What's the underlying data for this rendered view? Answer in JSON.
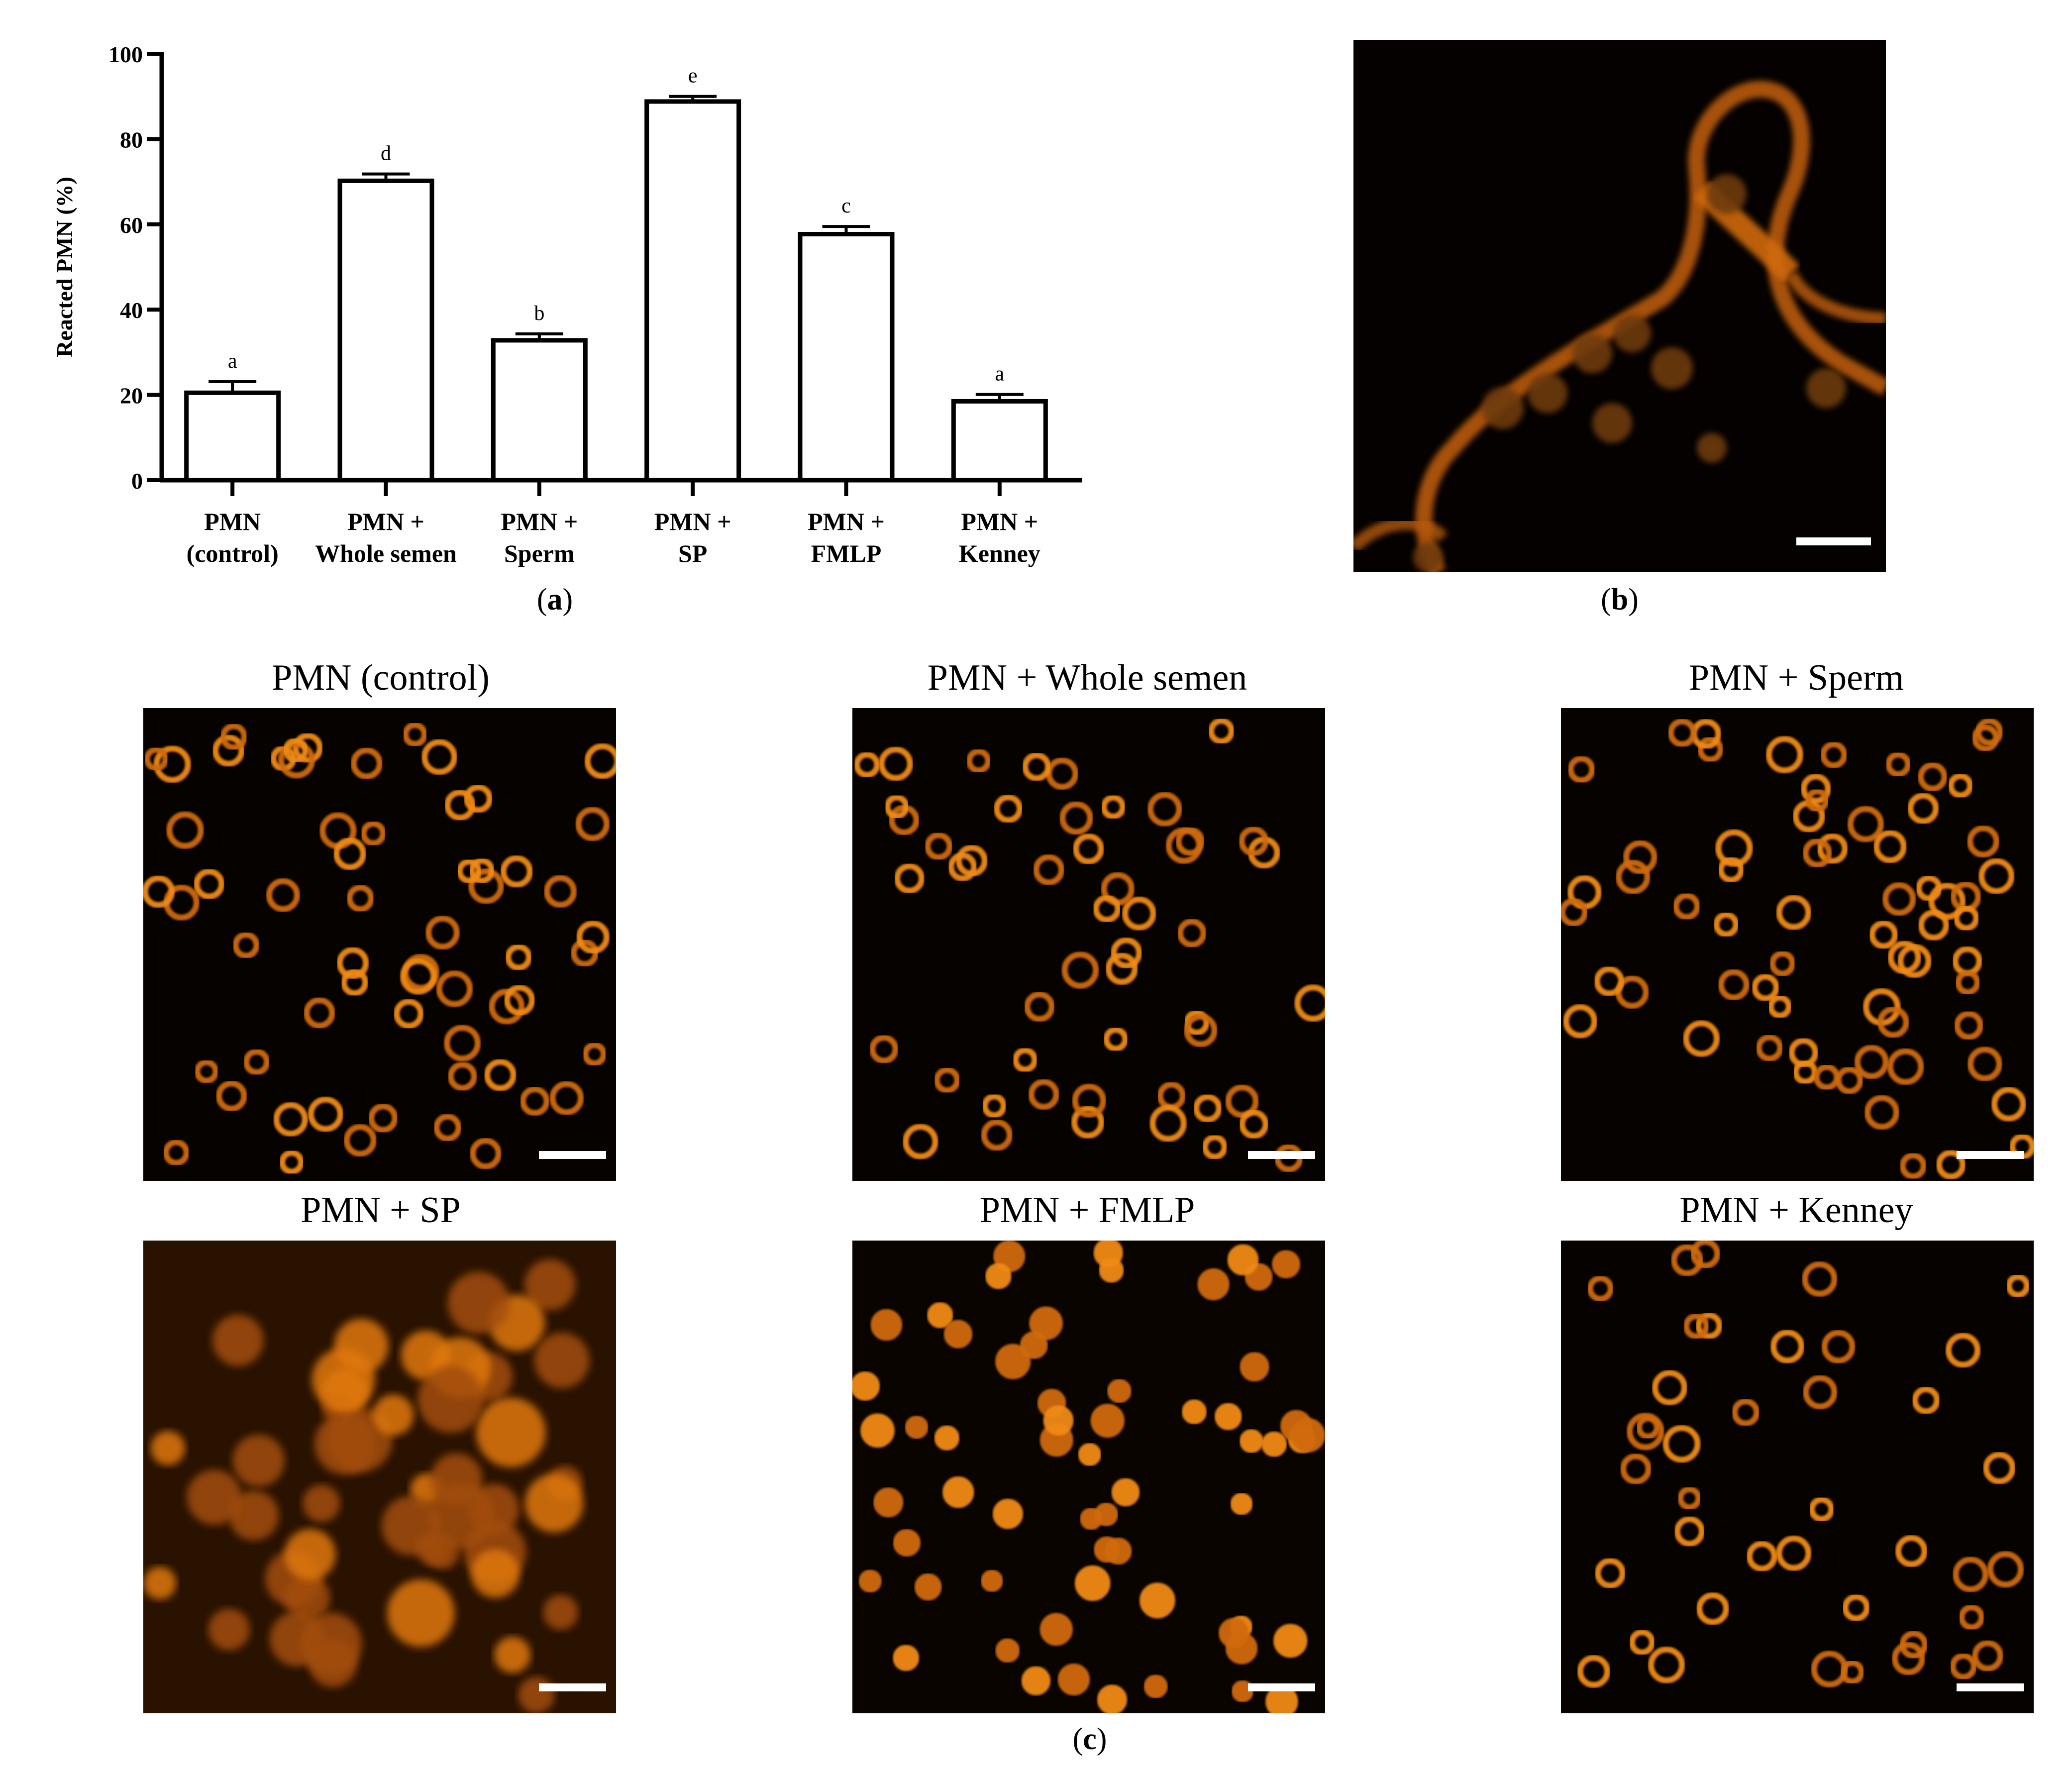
{
  "chart_data": {
    "type": "bar",
    "ylabel": "Reacted PMN (%)",
    "ylim": [
      0,
      100
    ],
    "yticks": [
      0,
      20,
      40,
      60,
      80,
      100
    ],
    "categories": [
      [
        "PMN",
        "(control)"
      ],
      [
        "PMN +",
        "Whole semen"
      ],
      [
        "PMN +",
        "Sperm"
      ],
      [
        "PMN +",
        "SP"
      ],
      [
        "PMN +",
        "FMLP"
      ],
      [
        "PMN +",
        "Kenney"
      ]
    ],
    "values": [
      20.5,
      70.2,
      32.8,
      88.8,
      57.7,
      18.5
    ],
    "errors": [
      2.6,
      1.6,
      1.5,
      1.2,
      1.8,
      1.6
    ],
    "significance_letters": [
      "a",
      "d",
      "b",
      "e",
      "c",
      "a"
    ],
    "bar_fill": "#ffffff",
    "bar_edge": "#000000"
  },
  "panels": {
    "a_label": "a",
    "b_label": "b",
    "c_label": "c"
  },
  "micrographs": [
    {
      "title": "PMN (control)"
    },
    {
      "title": "PMN + Whole semen"
    },
    {
      "title": "PMN + Sperm"
    },
    {
      "title": "PMN + SP"
    },
    {
      "title": "PMN + FMLP"
    },
    {
      "title": "PMN + Kenney"
    }
  ],
  "colors": {
    "micrograph_background": "#050200",
    "fluorescence": "#e07a10",
    "scalebar": "#ffffff"
  }
}
